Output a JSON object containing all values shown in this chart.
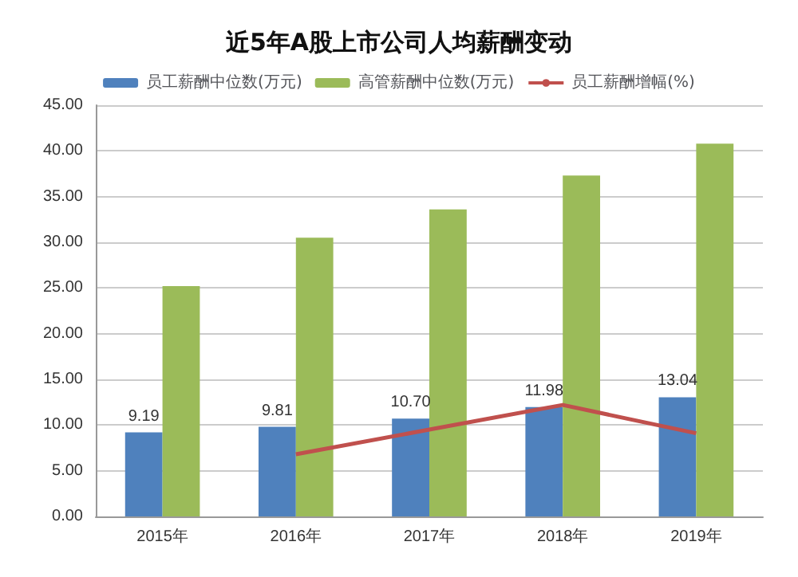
{
  "chart_data": {
    "type": "bar",
    "title": "近5年A股上市公司人均薪酬变动",
    "categories": [
      "2015年",
      "2016年",
      "2017年",
      "2018年",
      "2019年"
    ],
    "series": [
      {
        "name": "员工薪酬中位数(万元)",
        "color": "#4f81bd",
        "values": [
          9.19,
          9.81,
          10.7,
          11.98,
          13.04
        ],
        "value_labels": [
          "9.19",
          "9.81",
          "10.70",
          "11.98",
          "13.04"
        ]
      },
      {
        "name": "高管薪酬中位数(万元)",
        "color": "#9bbb59",
        "values": [
          25.2,
          30.5,
          33.6,
          37.3,
          40.8
        ]
      },
      {
        "name": "员工薪酬增幅(%)",
        "type": "line",
        "color": "#c0504d",
        "values": [
          null,
          6.8,
          9.5,
          12.2,
          9.1
        ]
      }
    ],
    "ylim": [
      0,
      45
    ],
    "yticks": [
      {
        "value": 0,
        "label": "0.00"
      },
      {
        "value": 5,
        "label": "5.00"
      },
      {
        "value": 10,
        "label": "10.00"
      },
      {
        "value": 15,
        "label": "15.00"
      },
      {
        "value": 20,
        "label": "20.00"
      },
      {
        "value": 25,
        "label": "25.00"
      },
      {
        "value": 30,
        "label": "30.00"
      },
      {
        "value": 35,
        "label": "35.00"
      },
      {
        "value": 40,
        "label": "40.00"
      },
      {
        "value": 45,
        "label": "45.00"
      }
    ],
    "grid": true,
    "legend": "top",
    "marker": "none"
  }
}
